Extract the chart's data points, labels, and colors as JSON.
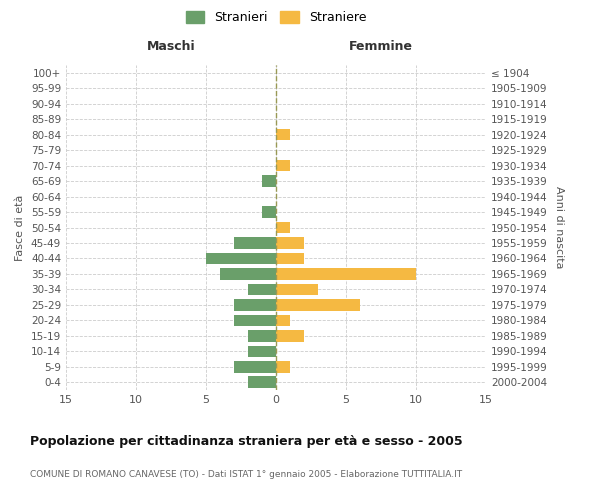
{
  "age_groups": [
    "0-4",
    "5-9",
    "10-14",
    "15-19",
    "20-24",
    "25-29",
    "30-34",
    "35-39",
    "40-44",
    "45-49",
    "50-54",
    "55-59",
    "60-64",
    "65-69",
    "70-74",
    "75-79",
    "80-84",
    "85-89",
    "90-94",
    "95-99",
    "100+"
  ],
  "birth_years": [
    "2000-2004",
    "1995-1999",
    "1990-1994",
    "1985-1989",
    "1980-1984",
    "1975-1979",
    "1970-1974",
    "1965-1969",
    "1960-1964",
    "1955-1959",
    "1950-1954",
    "1945-1949",
    "1940-1944",
    "1935-1939",
    "1930-1934",
    "1925-1929",
    "1920-1924",
    "1915-1919",
    "1910-1914",
    "1905-1909",
    "≤ 1904"
  ],
  "males": [
    2,
    3,
    2,
    2,
    3,
    3,
    2,
    4,
    5,
    3,
    0,
    1,
    0,
    1,
    0,
    0,
    0,
    0,
    0,
    0,
    0
  ],
  "females": [
    0,
    1,
    0,
    2,
    1,
    6,
    3,
    10,
    2,
    2,
    1,
    0,
    0,
    0,
    1,
    0,
    1,
    0,
    0,
    0,
    0
  ],
  "male_color": "#6a9f6a",
  "female_color": "#f5b942",
  "title": "Popolazione per cittadinanza straniera per età e sesso - 2005",
  "subtitle": "COMUNE DI ROMANO CANAVESE (TO) - Dati ISTAT 1° gennaio 2005 - Elaborazione TUTTITALIA.IT",
  "xlabel_left": "Maschi",
  "xlabel_right": "Femmine",
  "ylabel_left": "Fasce di età",
  "ylabel_right": "Anni di nascita",
  "legend_male": "Stranieri",
  "legend_female": "Straniere",
  "xlim": 15,
  "background_color": "#ffffff",
  "grid_color": "#cccccc"
}
